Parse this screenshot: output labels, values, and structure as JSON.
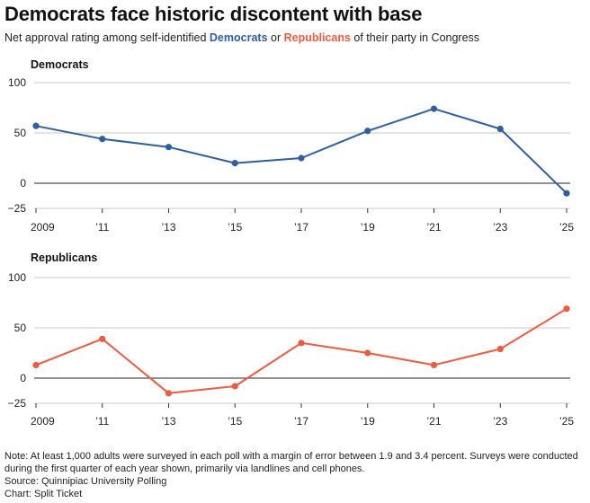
{
  "header": {
    "title": "Democrats face historic discontent with base",
    "subtitle_prefix": "Net approval rating among self-identified ",
    "subtitle_dem": "Democrats",
    "subtitle_mid": " or ",
    "subtitle_rep": "Republicans",
    "subtitle_suffix": " of their party in Congress"
  },
  "colors": {
    "democrats": "#2f5f9e",
    "republicans": "#ec5b3f"
  },
  "chart_data": [
    {
      "type": "line",
      "title": "Democrats",
      "x": [
        2009,
        2011,
        2013,
        2015,
        2017,
        2019,
        2021,
        2023,
        2025
      ],
      "x_tick_labels": [
        "2009",
        "’11",
        "’13",
        "’15",
        "’17",
        "’19",
        "’21",
        "’23",
        "’25"
      ],
      "series": [
        {
          "values": [
            57,
            44,
            36,
            20,
            25,
            52,
            74,
            54,
            -10
          ]
        }
      ],
      "ylim": [
        -25,
        100
      ],
      "y_ticks": [
        100,
        50,
        0,
        -25
      ],
      "grid": true
    },
    {
      "type": "line",
      "title": "Republicans",
      "x": [
        2009,
        2011,
        2013,
        2015,
        2017,
        2019,
        2021,
        2023,
        2025
      ],
      "x_tick_labels": [
        "2009",
        "’11",
        "’13",
        "’15",
        "’17",
        "’19",
        "’21",
        "’23",
        "’25"
      ],
      "series": [
        {
          "values": [
            13,
            39,
            -15,
            -8,
            35,
            25,
            13,
            29,
            69
          ]
        }
      ],
      "ylim": [
        -25,
        100
      ],
      "y_ticks": [
        100,
        50,
        0,
        -25
      ],
      "grid": true
    }
  ],
  "footer": {
    "note": "Note: At least 1,000 adults were surveyed in each poll with a margin of error between 1.9 and 3.4 percent. Surveys were conducted during the first quarter of each year shown, primarily via landlines and cell phones.",
    "source": "Source: Quinnipiac University Polling",
    "credit": "Chart: Split Ticket"
  }
}
